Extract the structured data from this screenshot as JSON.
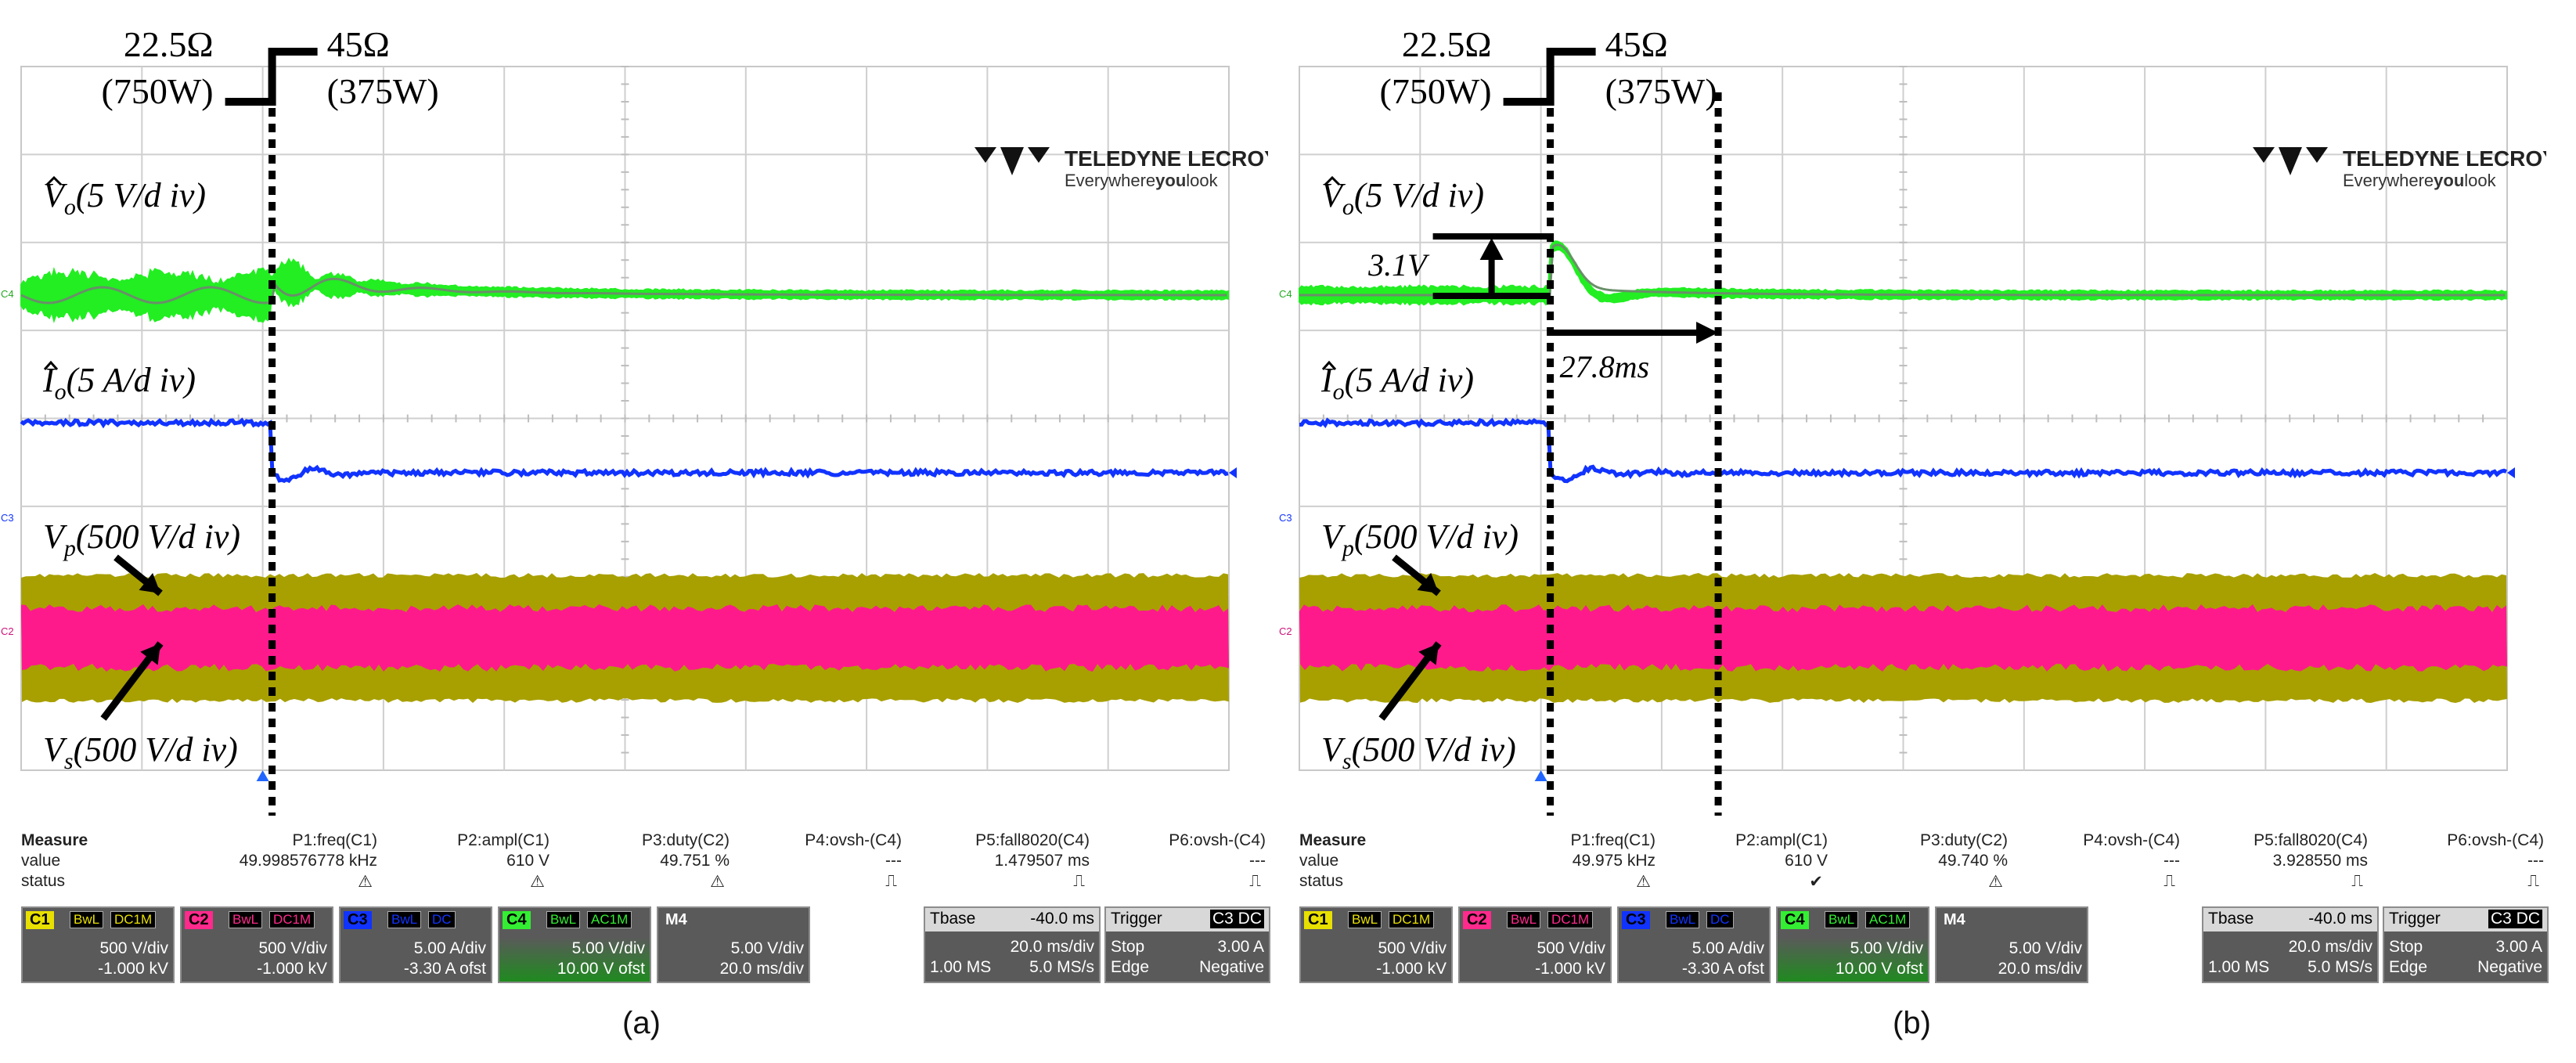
{
  "chart_data": [
    {
      "type": "line",
      "panel_label": "(a)",
      "scope_brand": "TELEDYNE LECROY",
      "scope_tagline_a": "Everywhere",
      "scope_tagline_b": "you",
      "scope_tagline_c": "look",
      "load_step": {
        "before_r": "22.5Ω",
        "before_p": "(750W)",
        "after_r": "45Ω",
        "after_p": "(375W)"
      },
      "time_axis": {
        "divisions": 10,
        "ms_per_div": 20,
        "step_at_ms": 40
      },
      "traces": [
        {
          "name": "Vo",
          "label_main": "V",
          "label_sub": "o",
          "scale": "(5 V/d iv)",
          "color": "#22ee22",
          "desc": "oscillation ~±1 div before step, decaying after"
        },
        {
          "name": "Io",
          "label_main": "I",
          "label_sub": "o",
          "scale": "(5 A/d iv)",
          "color": "#1133ff",
          "step_divs": -0.45
        },
        {
          "name": "Vp",
          "label_main": "V",
          "label_sub": "p",
          "scale": "(500 V/d iv)",
          "color": "#a8a000"
        },
        {
          "name": "Vs",
          "label_main": "V",
          "label_sub": "s",
          "scale": "(500 V/d iv)",
          "color": "#ff1a8c"
        }
      ],
      "annotations": [],
      "measure": {
        "title": "Measure",
        "row2": "value",
        "row3": "status",
        "headers": [
          "P1:freq(C1)",
          "P2:ampl(C1)",
          "P3:duty(C2)",
          "P4:ovsh-(C4)",
          "P5:fall8020(C4)",
          "P6:ovsh-(C4)"
        ],
        "values": [
          "49.998576778 kHz",
          "610 V",
          "49.751 %",
          "---",
          "1.479507 ms",
          "---"
        ],
        "status": [
          "⚠",
          "⚠",
          "⚠",
          "⎍",
          "⎍",
          "⎍"
        ]
      },
      "channels": [
        {
          "id": "C1",
          "color": "#e8e000",
          "cpl": [
            "BwL",
            "DC1M"
          ],
          "l1": "500 V/div",
          "l2": "-1.000 kV"
        },
        {
          "id": "C2",
          "color": "#ff2a8c",
          "cpl": [
            "BwL",
            "DC1M"
          ],
          "l1": "500 V/div",
          "l2": "-1.000 kV"
        },
        {
          "id": "C3",
          "color": "#1133ff",
          "cpl": [
            "BwL",
            "DC"
          ],
          "l1": "5.00 A/div",
          "l2": "-3.30 A ofst"
        },
        {
          "id": "C4",
          "color": "#33ee33",
          "cpl": [
            "BwL",
            "AC1M"
          ],
          "l1": "5.00 V/div",
          "l2": "10.00 V ofst"
        },
        {
          "id": "M4",
          "color": "#5a5a5a",
          "cpl": [],
          "l1": "5.00 V/div",
          "l2": "20.0 ms/div"
        }
      ],
      "timebase": {
        "hd_l": "Tbase",
        "hd_r": "-40.0 ms",
        "l1": "20.0 ms/div",
        "l2a": "1.00 MS",
        "l2b": "5.0 MS/s"
      },
      "trigger": {
        "hd_l": "Trigger",
        "hd_r": "C3 DC",
        "l1a": "Stop",
        "l1b": "3.00 A",
        "l2a": "Edge",
        "l2b": "Negative"
      }
    },
    {
      "type": "line",
      "panel_label": "(b)",
      "scope_brand": "TELEDYNE LECROY",
      "scope_tagline_a": "Everywhere",
      "scope_tagline_b": "you",
      "scope_tagline_c": "look",
      "load_step": {
        "before_r": "22.5Ω",
        "before_p": "(750W)",
        "after_r": "45Ω",
        "after_p": "(375W)"
      },
      "time_axis": {
        "divisions": 10,
        "ms_per_div": 20,
        "step_at_ms": 40
      },
      "traces": [
        {
          "name": "Vo",
          "label_main": "V",
          "label_sub": "o",
          "scale": "(5 V/d iv)",
          "color": "#22ee22",
          "desc": "small ripple, overshoot 3.1V at step, settles in 27.8ms"
        },
        {
          "name": "Io",
          "label_main": "I",
          "label_sub": "o",
          "scale": "(5 A/d iv)",
          "color": "#1133ff",
          "step_divs": -0.45
        },
        {
          "name": "Vp",
          "label_main": "V",
          "label_sub": "p",
          "scale": "(500 V/d iv)",
          "color": "#a8a000"
        },
        {
          "name": "Vs",
          "label_main": "V",
          "label_sub": "s",
          "scale": "(500 V/d iv)",
          "color": "#ff1a8c"
        }
      ],
      "annotations": [
        {
          "overshoot": "3.1V",
          "settling": "27.8ms"
        }
      ],
      "measure": {
        "title": "Measure",
        "row2": "value",
        "row3": "status",
        "headers": [
          "P1:freq(C1)",
          "P2:ampl(C1)",
          "P3:duty(C2)",
          "P4:ovsh-(C4)",
          "P5:fall8020(C4)",
          "P6:ovsh-(C4)"
        ],
        "values": [
          "49.975 kHz",
          "610 V",
          "49.740 %",
          "---",
          "3.928550 ms",
          "---"
        ],
        "status": [
          "⚠",
          "✔",
          "⚠",
          "⎍",
          "⎍",
          "⎍"
        ]
      },
      "channels": [
        {
          "id": "C1",
          "color": "#e8e000",
          "cpl": [
            "BwL",
            "DC1M"
          ],
          "l1": "500 V/div",
          "l2": "-1.000 kV"
        },
        {
          "id": "C2",
          "color": "#ff2a8c",
          "cpl": [
            "BwL",
            "DC1M"
          ],
          "l1": "500 V/div",
          "l2": "-1.000 kV"
        },
        {
          "id": "C3",
          "color": "#1133ff",
          "cpl": [
            "BwL",
            "DC"
          ],
          "l1": "5.00 A/div",
          "l2": "-3.30 A ofst"
        },
        {
          "id": "C4",
          "color": "#33ee33",
          "cpl": [
            "BwL",
            "AC1M"
          ],
          "l1": "5.00 V/div",
          "l2": "10.00 V ofst"
        },
        {
          "id": "M4",
          "color": "#5a5a5a",
          "cpl": [],
          "l1": "5.00 V/div",
          "l2": "20.0 ms/div"
        }
      ],
      "timebase": {
        "hd_l": "Tbase",
        "hd_r": "-40.0 ms",
        "l1": "20.0 ms/div",
        "l2a": "1.00 MS",
        "l2b": "5.0 MS/s"
      },
      "trigger": {
        "hd_l": "Trigger",
        "hd_r": "C3 DC",
        "l1a": "Stop",
        "l1b": "3.00 A",
        "l2a": "Edge",
        "l2b": "Negative"
      }
    }
  ]
}
